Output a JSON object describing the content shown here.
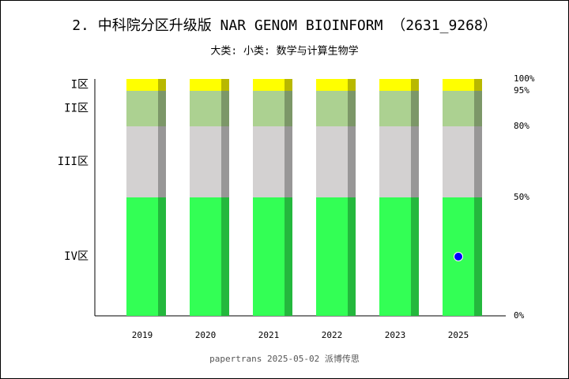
{
  "chart_data": {
    "type": "bar",
    "stacked": true,
    "title": "2. 中科院分区升级版 NAR GENOM BIOINFORM （2631_9268）",
    "subtitle": "大类:  小类: 数学与计算生物学",
    "footer": "papertrans 2025-05-02 派博传思",
    "categories": [
      "2019",
      "2020",
      "2021",
      "2022",
      "2023",
      "2025"
    ],
    "series": [
      {
        "name": "IV区",
        "color": "#33ff55",
        "values": [
          50,
          50,
          50,
          50,
          50,
          50
        ]
      },
      {
        "name": "III区",
        "color": "#d3d1d1",
        "values": [
          30,
          30,
          30,
          30,
          30,
          30
        ]
      },
      {
        "name": "II区",
        "color": "#acd191",
        "values": [
          15,
          15,
          15,
          15,
          15,
          15
        ]
      },
      {
        "name": "I区",
        "color": "#ffff00",
        "values": [
          5,
          5,
          5,
          5,
          5,
          5
        ]
      }
    ],
    "marker": {
      "category": "2025",
      "value": 25,
      "color": "#0000ff"
    },
    "ylim": [
      0,
      100
    ],
    "yticks": [
      {
        "value": 0,
        "label": "0%"
      },
      {
        "value": 50,
        "label": "50%"
      },
      {
        "value": 80,
        "label": "80%"
      },
      {
        "value": 95,
        "label": "95%"
      },
      {
        "value": 100,
        "label": "100%"
      }
    ]
  }
}
